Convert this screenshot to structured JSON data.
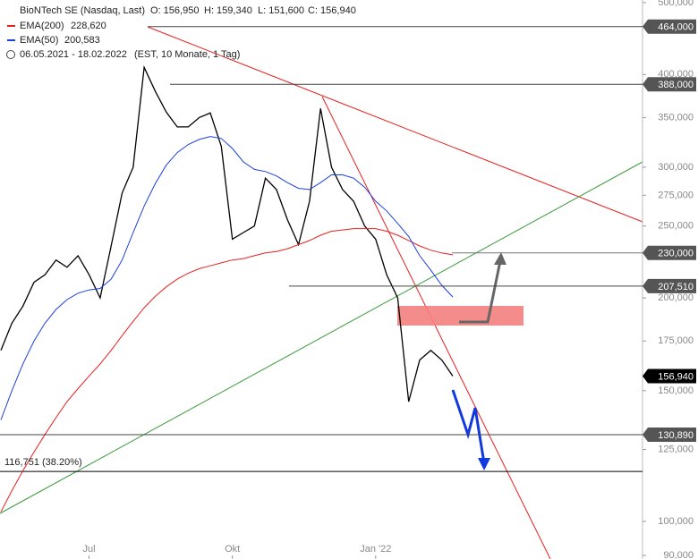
{
  "chart_data": {
    "type": "line",
    "title": "BioNTech SE (Nasdaq, Last)",
    "ohlc_labels": [
      "O: 156,950",
      "H: 159,340",
      "L: 151,600",
      "C: 156,940"
    ],
    "period": "06.05.2021 - 18.02.2022",
    "period_note": "(EST, 10 Monate, 1 Tag)",
    "categories": [
      null,
      null,
      null,
      null,
      null,
      null,
      null,
      null,
      "Jul",
      null,
      null,
      null,
      null,
      null,
      null,
      null,
      null,
      null,
      null,
      null,
      null,
      "Okt",
      null,
      null,
      null,
      null,
      null,
      null,
      null,
      null,
      null,
      null,
      null,
      null,
      "Jan '22",
      null,
      null,
      null,
      null,
      null,
      null,
      null
    ],
    "series": [
      {
        "name": "BioNTech SE",
        "color": "#000000",
        "values": [
          170000,
          185000,
          195000,
          210000,
          215000,
          225000,
          220000,
          228000,
          215000,
          200000,
          235000,
          277000,
          300000,
          409000,
          380000,
          356000,
          340000,
          340000,
          350000,
          355000,
          320000,
          240000,
          245000,
          250000,
          290000,
          280000,
          255000,
          236000,
          270000,
          360000,
          300000,
          280000,
          270000,
          250000,
          240000,
          215000,
          200000,
          145000,
          165000,
          170000,
          165000,
          156940
        ]
      },
      {
        "name": "EMA(200)",
        "legend_value": "228,620",
        "color": "#e8201e",
        "values": [
          103000,
          110000,
          117000,
          124000,
          131000,
          138000,
          145000,
          151000,
          157000,
          163000,
          170000,
          178000,
          186000,
          194000,
          201000,
          207000,
          212000,
          216000,
          219000,
          221000,
          223000,
          225000,
          226000,
          228000,
          230000,
          231000,
          233000,
          236000,
          239000,
          243000,
          246000,
          247000,
          248000,
          248000,
          248000,
          246000,
          243000,
          239000,
          235000,
          232000,
          230000,
          228620
        ]
      },
      {
        "name": "EMA(50)",
        "legend_value": "200,583",
        "color": "#1a3fe0",
        "values": [
          137000,
          150000,
          163000,
          175000,
          185000,
          193000,
          199000,
          203000,
          205000,
          206000,
          212000,
          225000,
          245000,
          266000,
          285000,
          302000,
          314000,
          322000,
          327000,
          330000,
          328000,
          318000,
          305000,
          298000,
          296000,
          292000,
          286000,
          281000,
          280000,
          286000,
          293000,
          293000,
          290000,
          282000,
          270000,
          262000,
          252000,
          242000,
          228000,
          218000,
          208000,
          200583
        ]
      }
    ],
    "levels": [
      {
        "value": 464000,
        "label": "464,000"
      },
      {
        "value": 388000,
        "label": "388,000"
      },
      {
        "value": 230000,
        "label": "230,000"
      },
      {
        "value": 207510,
        "label": "207,510"
      },
      {
        "value": 156940,
        "label": "156,940"
      },
      {
        "value": 130890,
        "label": "130,890"
      }
    ],
    "fib_level": {
      "value": 116751,
      "label": "116,751 (38.20%)"
    },
    "log_scale": true,
    "ylim": [
      89000,
      504000
    ],
    "yticks": [
      {
        "value": 500000,
        "label": "500,000"
      },
      {
        "value": 400000,
        "label": "400,000"
      },
      {
        "value": 350000,
        "label": "350,000"
      },
      {
        "value": 300000,
        "label": "300,000"
      },
      {
        "value": 275000,
        "label": "275,000"
      },
      {
        "value": 250000,
        "label": "250,000"
      },
      {
        "value": 200000,
        "label": "200,000"
      },
      {
        "value": 175000,
        "label": "175,000"
      },
      {
        "value": 150000,
        "label": "150,000"
      },
      {
        "value": 125000,
        "label": "125,000"
      },
      {
        "value": 100000,
        "label": "100,000"
      },
      {
        "value": 90000,
        "label": "90,000"
      }
    ]
  }
}
